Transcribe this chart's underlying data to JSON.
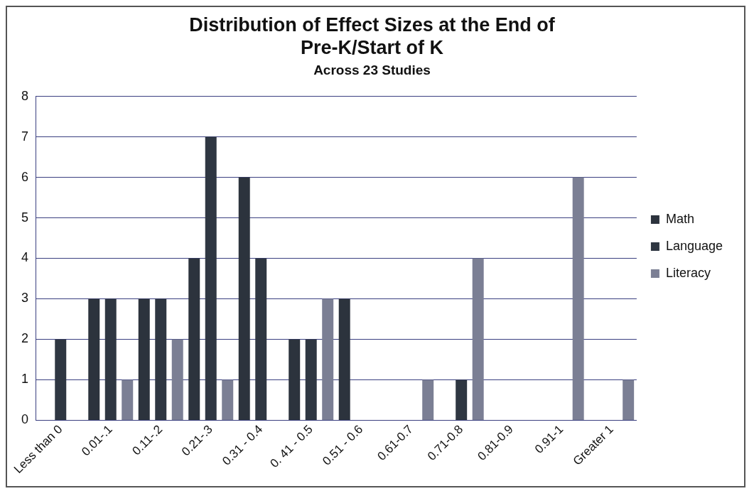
{
  "chart_data": {
    "type": "bar",
    "title": "Distribution of Effect Sizes at the End of Pre-K/Start of K",
    "subtitle": "Across 23 Studies",
    "categories": [
      "Less than 0",
      "0.01-.1",
      "0.11-.2",
      "0.21-.3",
      "0.31 - 0.4",
      "0. 41 - 0.5",
      "0.51 - 0.6",
      "0.61-0.7",
      "0.71-0.8",
      "0.81-0.9",
      "0.91-1",
      "Greater 1"
    ],
    "series": [
      {
        "name": "Math",
        "color": "#2c333d",
        "values": [
          0,
          3,
          3,
          4,
          6,
          2,
          3,
          0,
          0,
          0,
          0,
          0
        ]
      },
      {
        "name": "Language",
        "color": "#2f3742",
        "values": [
          2,
          3,
          3,
          7,
          4,
          2,
          0,
          0,
          1,
          0,
          0,
          0
        ]
      },
      {
        "name": "Literacy",
        "color": "#7b7f94",
        "values": [
          0,
          1,
          2,
          1,
          0,
          3,
          0,
          1,
          4,
          0,
          6,
          1
        ]
      }
    ],
    "ylim": [
      0,
      8
    ],
    "yticks": [
      0,
      1,
      2,
      3,
      4,
      5,
      6,
      7,
      8
    ],
    "grid": "y",
    "legend": "right"
  }
}
